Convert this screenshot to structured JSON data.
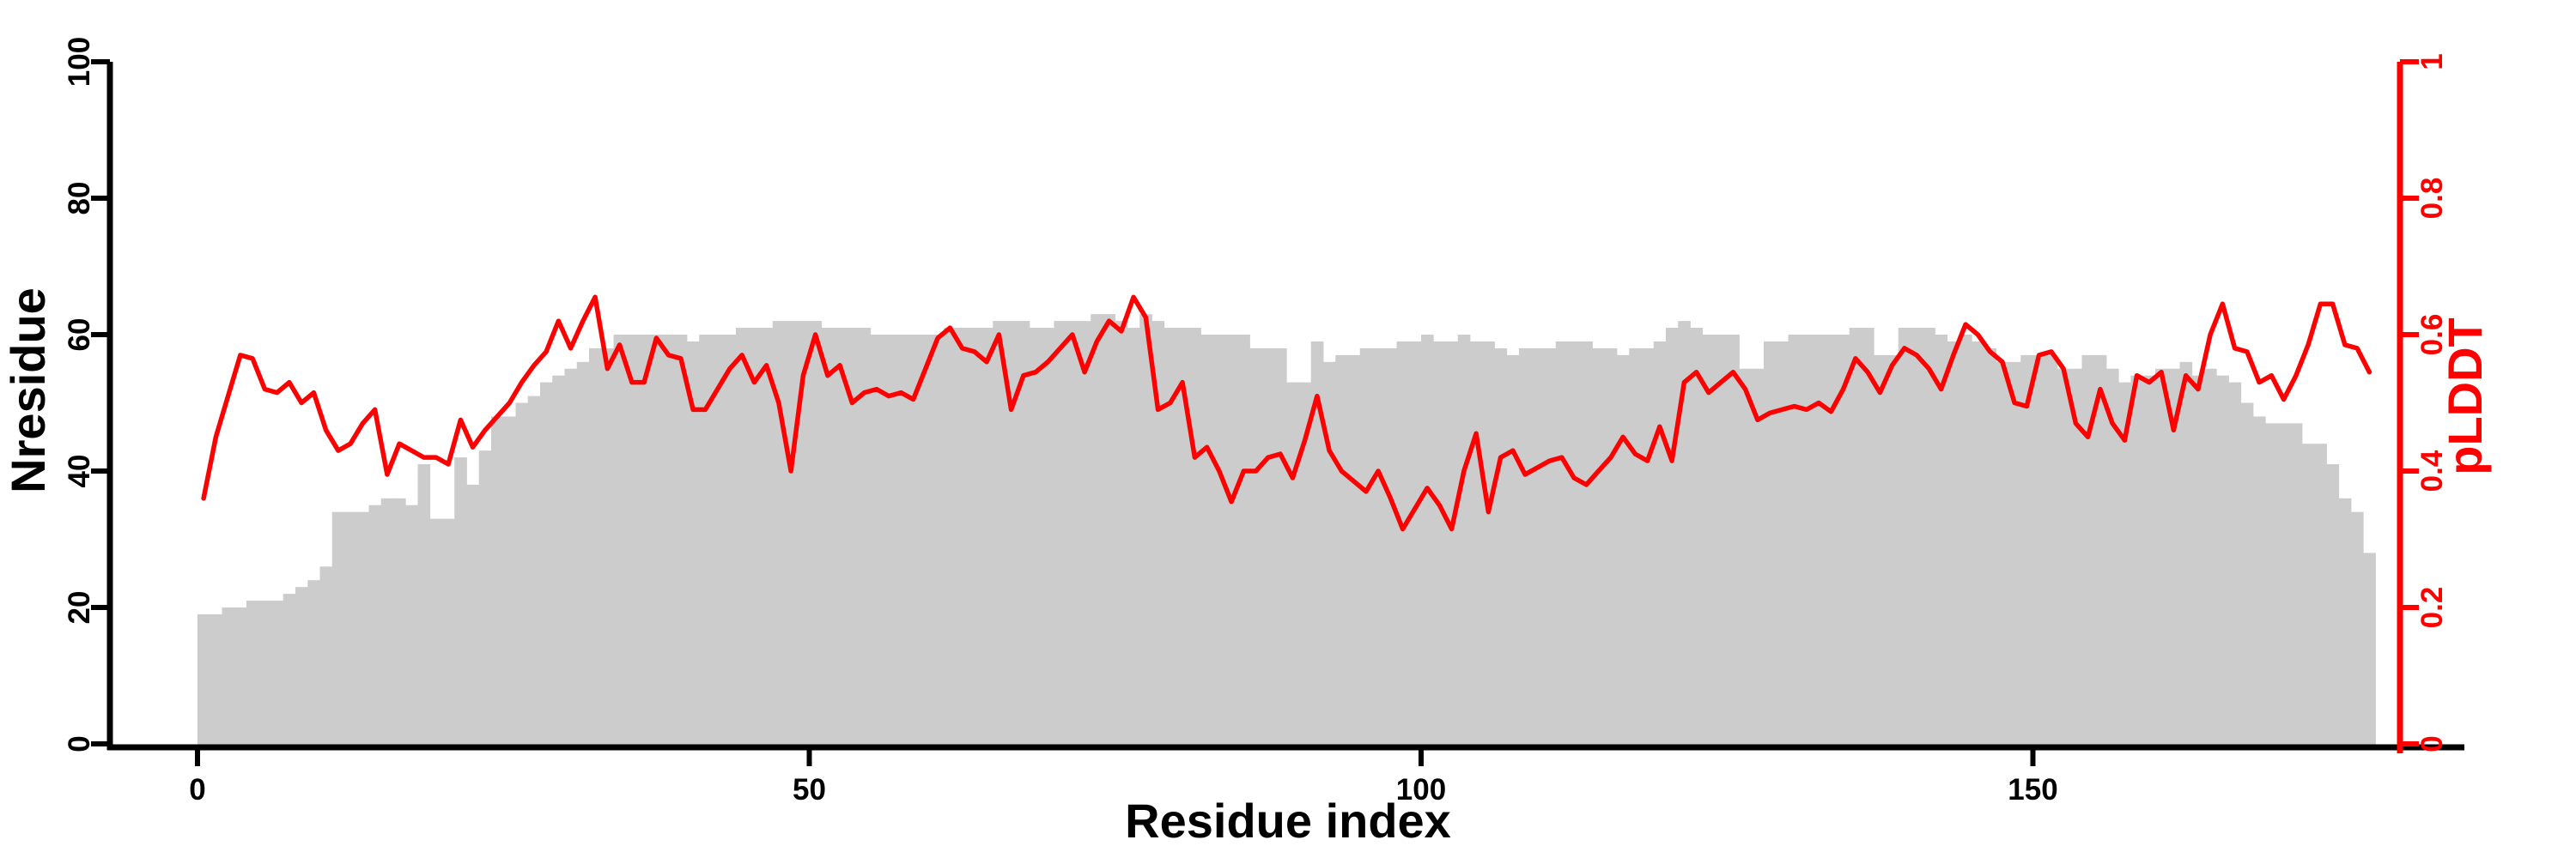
{
  "chart_data": {
    "type": "bar",
    "subtype": "bar+line dual axis (per-residue profile)",
    "title": "",
    "xlabel": "Residue index",
    "ylabel_left": "Nresidue",
    "ylabel_right": "pLDDT",
    "x_ticks": [
      0,
      50,
      100,
      150
    ],
    "x_range": [
      0,
      178
    ],
    "y_left_ticks": [
      0,
      20,
      40,
      60,
      80,
      100
    ],
    "y_left_range": [
      0,
      100
    ],
    "y_right_ticks": [
      "0",
      "0.2",
      "0.4",
      "0.6",
      "0.8",
      "1"
    ],
    "y_right_tick_values": [
      0,
      0.2,
      0.4,
      0.6,
      0.8,
      1
    ],
    "y_right_range": [
      0,
      1
    ],
    "grid": "off",
    "legend": "none",
    "colors": {
      "bar_fill": "#cccccc",
      "line": "#ff0000",
      "axis_left": "#000000",
      "axis_right": "#ff0000",
      "background": "#ffffff"
    },
    "series": [
      {
        "name": "Nresidue",
        "type": "bar",
        "axis": "left",
        "values": [
          19,
          19,
          20,
          20,
          21,
          21,
          21,
          22,
          23,
          24,
          26,
          34,
          34,
          34,
          35,
          36,
          36,
          35,
          41,
          33,
          33,
          42,
          38,
          43,
          48,
          48,
          50,
          51,
          53,
          54,
          55,
          56,
          58,
          58,
          60,
          60,
          60,
          60,
          60,
          60,
          59,
          60,
          60,
          60,
          61,
          61,
          61,
          62,
          62,
          62,
          62,
          61,
          61,
          61,
          61,
          60,
          60,
          60,
          60,
          60,
          60,
          61,
          61,
          61,
          61,
          62,
          62,
          62,
          61,
          61,
          62,
          62,
          62,
          63,
          63,
          62,
          61,
          63,
          62,
          61,
          61,
          61,
          60,
          60,
          60,
          60,
          58,
          58,
          58,
          53,
          53,
          59,
          56,
          57,
          57,
          58,
          58,
          58,
          59,
          59,
          60,
          59,
          59,
          60,
          59,
          59,
          58,
          57,
          58,
          58,
          58,
          59,
          59,
          59,
          58,
          58,
          57,
          58,
          58,
          59,
          61,
          62,
          61,
          60,
          60,
          60,
          55,
          55,
          59,
          59,
          60,
          60,
          60,
          60,
          60,
          61,
          61,
          57,
          57,
          61,
          61,
          61,
          60,
          59,
          60,
          59,
          58,
          56,
          56,
          57,
          57,
          57,
          55,
          55,
          57,
          57,
          55,
          53,
          54,
          54,
          55,
          55,
          56,
          54,
          55,
          54,
          53,
          50,
          48,
          47,
          47,
          47,
          44,
          44,
          41,
          36,
          34,
          28
        ]
      },
      {
        "name": "pLDDT",
        "type": "line",
        "axis": "right",
        "values": [
          0.36,
          0.45,
          0.51,
          0.57,
          0.565,
          0.52,
          0.515,
          0.53,
          0.5,
          0.515,
          0.46,
          0.43,
          0.44,
          0.47,
          0.49,
          0.395,
          0.44,
          0.43,
          0.42,
          0.42,
          0.41,
          0.475,
          0.435,
          0.46,
          0.48,
          0.5,
          0.53,
          0.555,
          0.575,
          0.62,
          0.58,
          0.62,
          0.655,
          0.55,
          0.585,
          0.53,
          0.53,
          0.595,
          0.57,
          0.565,
          0.49,
          0.49,
          0.52,
          0.55,
          0.57,
          0.53,
          0.555,
          0.5,
          0.4,
          0.54,
          0.6,
          0.54,
          0.555,
          0.5,
          0.515,
          0.52,
          0.51,
          0.515,
          0.505,
          0.55,
          0.595,
          0.61,
          0.58,
          0.575,
          0.56,
          0.6,
          0.49,
          0.54,
          0.545,
          0.56,
          0.58,
          0.6,
          0.545,
          0.59,
          0.62,
          0.605,
          0.655,
          0.625,
          0.49,
          0.5,
          0.53,
          0.42,
          0.435,
          0.4,
          0.355,
          0.4,
          0.4,
          0.42,
          0.425,
          0.39,
          0.445,
          0.51,
          0.43,
          0.4,
          0.385,
          0.37,
          0.4,
          0.36,
          0.315,
          0.345,
          0.375,
          0.35,
          0.315,
          0.4,
          0.455,
          0.34,
          0.42,
          0.43,
          0.395,
          0.405,
          0.415,
          0.42,
          0.39,
          0.38,
          0.4,
          0.42,
          0.45,
          0.425,
          0.415,
          0.465,
          0.415,
          0.53,
          0.545,
          0.515,
          0.53,
          0.545,
          0.52,
          0.475,
          0.485,
          0.49,
          0.495,
          0.49,
          0.5,
          0.487,
          0.52,
          0.565,
          0.545,
          0.515,
          0.555,
          0.58,
          0.57,
          0.55,
          0.52,
          0.57,
          0.615,
          0.6,
          0.575,
          0.56,
          0.5,
          0.495,
          0.57,
          0.575,
          0.55,
          0.47,
          0.45,
          0.52,
          0.47,
          0.445,
          0.54,
          0.53,
          0.545,
          0.46,
          0.54,
          0.52,
          0.6,
          0.645,
          0.58,
          0.575,
          0.53,
          0.54,
          0.505,
          0.54,
          0.585,
          0.645,
          0.645,
          0.585,
          0.58,
          0.545
        ]
      }
    ]
  }
}
